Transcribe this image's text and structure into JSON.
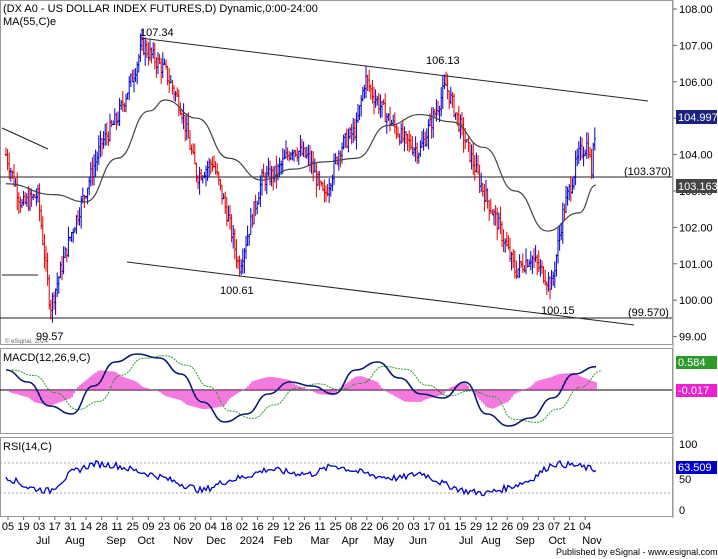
{
  "price_panel": {
    "title": "(DX A0 - US DOLLAR INDEX FUTURES,D) Dynamic,0:00-24:00",
    "ma_label": "MA(55,C)e",
    "watermark": "© eSignal, 2024",
    "y_ticks": [
      "108.00",
      "107.00",
      "106.00",
      "105.00",
      "104.00",
      "103.00",
      "102.00",
      "101.00",
      "100.00",
      "99.00"
    ],
    "current_price_box": "104.997",
    "ma_box": "103.163",
    "horizontal_level_label": "(103.370)",
    "lower_level_label": "(99.570)",
    "annotations": [
      "107.34",
      "106.13",
      "100.61",
      "100.15",
      "99.57"
    ]
  },
  "macd_panel": {
    "title": "MACD(12,26,9,C)",
    "macd_box": "0.584",
    "signal_box": "-0.017"
  },
  "rsi_panel": {
    "title": "RSI(14,C)",
    "y_ticks": [
      "100",
      "50",
      "0"
    ],
    "rsi_box": "63.509"
  },
  "x_axis": {
    "day_ticks": [
      "05",
      "19",
      "03",
      "17",
      "31",
      "14",
      "28",
      "11",
      "25",
      "09",
      "23",
      "06",
      "20",
      "04",
      "18",
      "02",
      "16",
      "29",
      "12",
      "26",
      "11",
      "25",
      "08",
      "22",
      "06",
      "20",
      "03",
      "17",
      "01",
      "15",
      "29",
      "12",
      "26",
      "09",
      "23",
      "07",
      "21",
      "04"
    ],
    "month_labels": [
      "Jul",
      "Aug",
      "Sep",
      "Oct",
      "Nov",
      "Dec",
      "2024",
      "Feb",
      "Mar",
      "Apr",
      "May",
      "Jun",
      "Jul",
      "Aug",
      "Sep",
      "Oct",
      "Nov"
    ]
  },
  "footer": "Published by eSignal - www.esignal.com",
  "colors": {
    "bar_up": "#0000cc",
    "bar_down": "#dd0000",
    "ma": "#444444",
    "macd_line": "#0a1a70",
    "macd_signal": "#2e9a2e",
    "macd_hist": "#ee22cc",
    "rsi_line": "#0000cc",
    "price_box": "#1a237e"
  },
  "chart_data": {
    "type": "candlestick",
    "series_name": "DX A0 - US DOLLAR INDEX FUTURES",
    "y_range_price": [
      99.0,
      108.3
    ],
    "key_levels": [
      103.37,
      99.57
    ],
    "swing_points": [
      {
        "x": "2023-07-14",
        "y": 99.57
      },
      {
        "x": "2023-10-03",
        "y": 107.34
      },
      {
        "x": "2023-12-27",
        "y": 100.61
      },
      {
        "x": "2024-06-26",
        "y": 106.13
      },
      {
        "x": "2024-09-27",
        "y": 100.15
      }
    ],
    "approx_closes": [
      {
        "x": "2023-06-05",
        "y": 104.0
      },
      {
        "x": "2023-06-19",
        "y": 102.6
      },
      {
        "x": "2023-07-03",
        "y": 102.9
      },
      {
        "x": "2023-07-14",
        "y": 99.8
      },
      {
        "x": "2023-07-31",
        "y": 101.7
      },
      {
        "x": "2023-08-14",
        "y": 103.0
      },
      {
        "x": "2023-08-28",
        "y": 104.3
      },
      {
        "x": "2023-09-11",
        "y": 105.0
      },
      {
        "x": "2023-09-25",
        "y": 106.2
      },
      {
        "x": "2023-10-03",
        "y": 107.0
      },
      {
        "x": "2023-10-23",
        "y": 106.3
      },
      {
        "x": "2023-11-06",
        "y": 105.3
      },
      {
        "x": "2023-11-20",
        "y": 103.4
      },
      {
        "x": "2023-12-04",
        "y": 103.8
      },
      {
        "x": "2023-12-18",
        "y": 102.2
      },
      {
        "x": "2023-12-27",
        "y": 100.9
      },
      {
        "x": "2024-01-16",
        "y": 103.3
      },
      {
        "x": "2024-01-29",
        "y": 103.5
      },
      {
        "x": "2024-02-12",
        "y": 104.2
      },
      {
        "x": "2024-02-26",
        "y": 103.9
      },
      {
        "x": "2024-03-11",
        "y": 102.8
      },
      {
        "x": "2024-03-25",
        "y": 104.2
      },
      {
        "x": "2024-04-08",
        "y": 104.7
      },
      {
        "x": "2024-04-16",
        "y": 106.1
      },
      {
        "x": "2024-04-22",
        "y": 105.7
      },
      {
        "x": "2024-05-06",
        "y": 105.0
      },
      {
        "x": "2024-05-20",
        "y": 104.4
      },
      {
        "x": "2024-06-03",
        "y": 104.1
      },
      {
        "x": "2024-06-17",
        "y": 105.2
      },
      {
        "x": "2024-06-26",
        "y": 105.9
      },
      {
        "x": "2024-07-15",
        "y": 104.2
      },
      {
        "x": "2024-07-29",
        "y": 103.0
      },
      {
        "x": "2024-08-12",
        "y": 102.0
      },
      {
        "x": "2024-08-26",
        "y": 100.8
      },
      {
        "x": "2024-09-09",
        "y": 101.2
      },
      {
        "x": "2024-09-27",
        "y": 100.4
      },
      {
        "x": "2024-10-07",
        "y": 102.4
      },
      {
        "x": "2024-10-21",
        "y": 104.0
      },
      {
        "x": "2024-10-29",
        "y": 104.3
      },
      {
        "x": "2024-11-01",
        "y": 103.5
      },
      {
        "x": "2024-11-05",
        "y": 104.997
      }
    ],
    "ma_55_approx": [
      {
        "x": "2023-06-05",
        "y": 103.2
      },
      {
        "x": "2023-07-17",
        "y": 102.9
      },
      {
        "x": "2023-08-14",
        "y": 102.7
      },
      {
        "x": "2023-09-11",
        "y": 103.9
      },
      {
        "x": "2023-10-09",
        "y": 105.2
      },
      {
        "x": "2023-10-23",
        "y": 105.5
      },
      {
        "x": "2023-11-20",
        "y": 105.0
      },
      {
        "x": "2023-12-18",
        "y": 103.9
      },
      {
        "x": "2024-01-16",
        "y": 103.3
      },
      {
        "x": "2024-02-12",
        "y": 103.6
      },
      {
        "x": "2024-03-11",
        "y": 103.8
      },
      {
        "x": "2024-04-08",
        "y": 103.9
      },
      {
        "x": "2024-05-06",
        "y": 104.8
      },
      {
        "x": "2024-06-03",
        "y": 105.1
      },
      {
        "x": "2024-07-01",
        "y": 104.9
      },
      {
        "x": "2024-07-29",
        "y": 104.2
      },
      {
        "x": "2024-08-26",
        "y": 103.0
      },
      {
        "x": "2024-09-23",
        "y": 101.9
      },
      {
        "x": "2024-10-21",
        "y": 102.4
      },
      {
        "x": "2024-11-05",
        "y": 103.163
      }
    ],
    "macd_approx": [
      0.5,
      0.2,
      -0.4,
      -0.6,
      0.1,
      0.7,
      0.9,
      0.8,
      0.4,
      -0.3,
      -0.8,
      -0.6,
      -0.1,
      0.2,
      0.1,
      -0.1,
      0.5,
      0.7,
      0.3,
      -0.1,
      -0.2,
      0.2,
      -0.6,
      -0.9,
      -0.7,
      -0.2,
      0.4,
      0.584
    ],
    "rsi_approx": [
      55,
      40,
      35,
      60,
      72,
      70,
      62,
      55,
      45,
      35,
      48,
      55,
      65,
      60,
      58,
      70,
      62,
      55,
      52,
      60,
      45,
      35,
      32,
      40,
      50,
      72,
      70,
      63.509
    ]
  }
}
